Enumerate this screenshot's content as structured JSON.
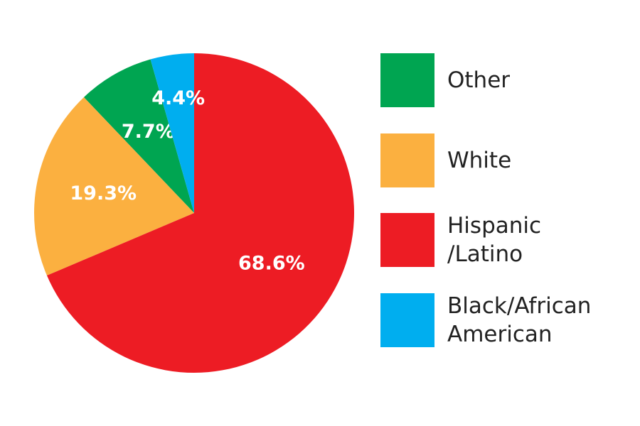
{
  "chart_data": {
    "type": "pie",
    "categories": [
      "Other",
      "White",
      "Hispanic /Latino",
      "Black/African American"
    ],
    "values": [
      7.7,
      19.3,
      68.6,
      4.4
    ],
    "value_labels": [
      "7.7%",
      "19.3%",
      "68.6%",
      "4.4%"
    ],
    "colors": [
      "#00a551",
      "#fbb040",
      "#ed1c24",
      "#00aeef"
    ],
    "legend": "right"
  }
}
